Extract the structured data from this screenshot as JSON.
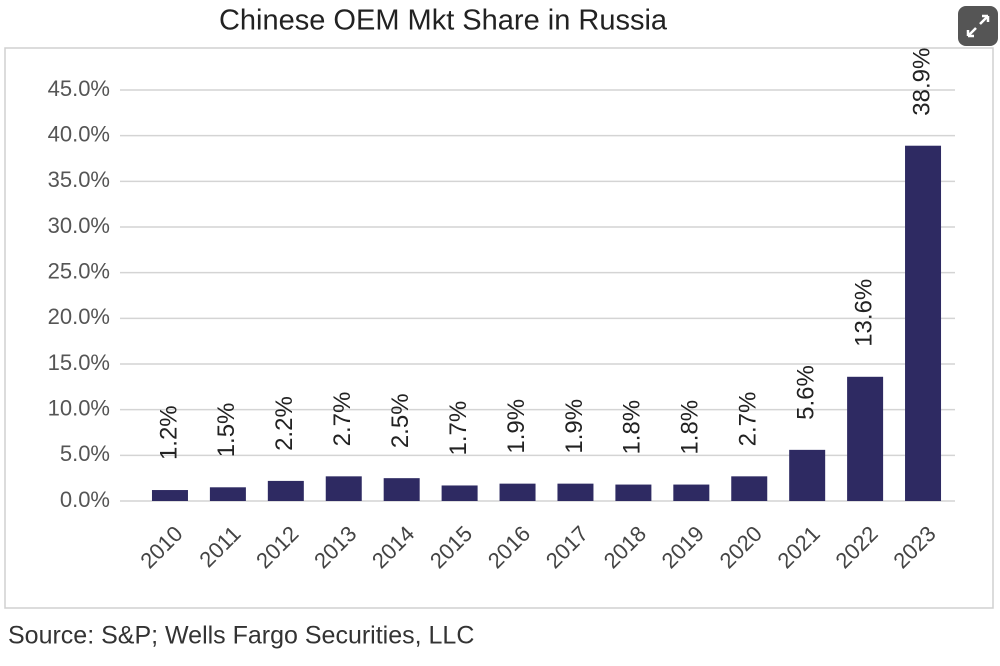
{
  "chart_data": {
    "type": "bar",
    "title": "Chinese OEM Mkt Share in Russia",
    "source": "Source: S&P; Wells Fargo Securities, LLC",
    "categories": [
      "2010",
      "2011",
      "2012",
      "2013",
      "2014",
      "2015",
      "2016",
      "2017",
      "2018",
      "2019",
      "2020",
      "2021",
      "2022",
      "2023"
    ],
    "values": [
      1.2,
      1.5,
      2.2,
      2.7,
      2.5,
      1.7,
      1.9,
      1.9,
      1.8,
      1.8,
      2.7,
      5.6,
      13.6,
      38.9
    ],
    "value_labels": [
      "1.2%",
      "1.5%",
      "2.2%",
      "2.7%",
      "2.5%",
      "1.7%",
      "1.9%",
      "1.9%",
      "1.8%",
      "1.8%",
      "2.7%",
      "5.6%",
      "13.6%",
      "38.9%"
    ],
    "color": "#2e2a62",
    "ylim": [
      0,
      45
    ],
    "yticks": [
      {
        "value": 0,
        "label": "0.0%"
      },
      {
        "value": 5,
        "label": "5.0%"
      },
      {
        "value": 10,
        "label": "10.0%"
      },
      {
        "value": 15,
        "label": "15.0%"
      },
      {
        "value": 20,
        "label": "20.0%"
      },
      {
        "value": 25,
        "label": "25.0%"
      },
      {
        "value": 30,
        "label": "30.0%"
      },
      {
        "value": 35,
        "label": "35.0%"
      },
      {
        "value": 40,
        "label": "40.0%"
      },
      {
        "value": 45,
        "label": "45.0%"
      }
    ],
    "grid": true
  }
}
